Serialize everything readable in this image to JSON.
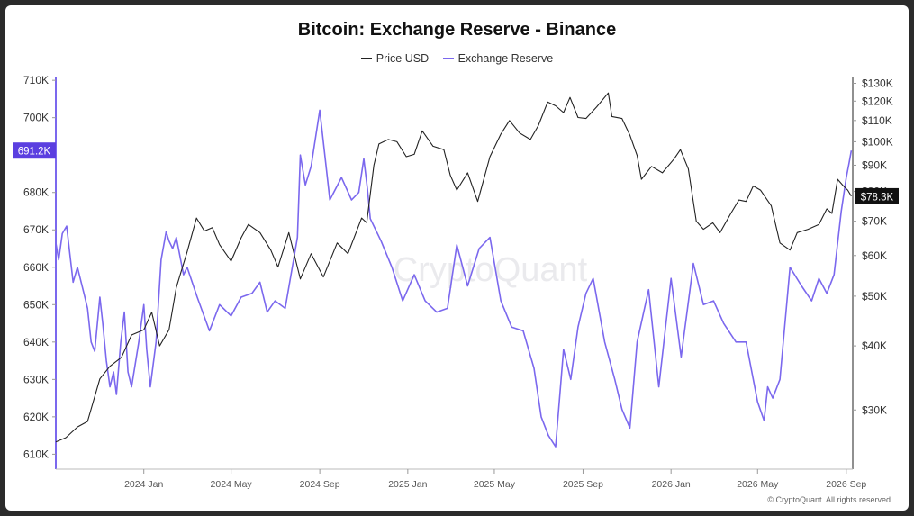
{
  "chart_data": {
    "type": "line",
    "title": "Bitcoin: Exchange Reserve - Binance",
    "watermark": "CryptoQuant",
    "credit": "© CryptoQuant. All rights reserved",
    "x_axis": {
      "type": "date",
      "range": [
        "2023-09-01",
        "2026-09-10"
      ],
      "tick_labels": [
        "2024 Jan",
        "2024 May",
        "2024 Sep",
        "2025 Jan",
        "2025 May",
        "2025 Sep",
        "2026 Jan",
        "2026 May",
        "2026 Sep"
      ],
      "tick_dates": [
        "2024-01-01",
        "2024-05-01",
        "2024-09-01",
        "2025-01-01",
        "2025-05-01",
        "2025-09-01",
        "2026-01-01",
        "2026-05-01",
        "2026-09-01"
      ]
    },
    "y_left": {
      "scale": "linear",
      "range": [
        606000,
        711000
      ],
      "ticks": [
        610000,
        620000,
        630000,
        640000,
        650000,
        660000,
        670000,
        680000,
        690000,
        700000,
        710000
      ],
      "tick_labels": [
        "610K",
        "620K",
        "630K",
        "640K",
        "650K",
        "660K",
        "670K",
        "680K",
        "690K",
        "700K",
        "710K"
      ],
      "current_value_label": "691.2K",
      "current_value": 691200
    },
    "y_right": {
      "scale": "log",
      "range": [
        23000,
        134000
      ],
      "ticks": [
        30000,
        40000,
        50000,
        60000,
        70000,
        80000,
        90000,
        100000,
        110000,
        120000,
        130000
      ],
      "tick_labels": [
        "$30K",
        "$40K",
        "$50K",
        "$60K",
        "$70K",
        "$80K",
        "$90K",
        "$100K",
        "$110K",
        "$120K",
        "$130K"
      ],
      "current_value_label": "$78.3K",
      "current_value": 78300
    },
    "grid": false,
    "legend_position": "top-center",
    "series": [
      {
        "name": "Price USD",
        "axis": "right",
        "color": "#222222",
        "x": [
          "2023-09-01",
          "2023-09-15",
          "2023-10-01",
          "2023-10-15",
          "2023-11-01",
          "2023-11-15",
          "2023-12-01",
          "2023-12-15",
          "2024-01-01",
          "2024-01-12",
          "2024-01-23",
          "2024-02-05",
          "2024-02-15",
          "2024-03-01",
          "2024-03-14",
          "2024-03-25",
          "2024-04-05",
          "2024-04-15",
          "2024-05-01",
          "2024-05-15",
          "2024-05-25",
          "2024-06-10",
          "2024-06-25",
          "2024-07-05",
          "2024-07-20",
          "2024-08-05",
          "2024-08-20",
          "2024-09-06",
          "2024-09-25",
          "2024-10-10",
          "2024-10-29",
          "2024-11-05",
          "2024-11-15",
          "2024-11-22",
          "2024-12-05",
          "2024-12-17",
          "2024-12-30",
          "2025-01-10",
          "2025-01-21",
          "2025-02-05",
          "2025-02-20",
          "2025-03-01",
          "2025-03-10",
          "2025-03-25",
          "2025-04-08",
          "2025-04-25",
          "2025-05-10",
          "2025-05-22",
          "2025-06-05",
          "2025-06-20",
          "2025-07-01",
          "2025-07-14",
          "2025-07-25",
          "2025-08-05",
          "2025-08-14",
          "2025-08-25",
          "2025-09-05",
          "2025-09-20",
          "2025-10-06",
          "2025-10-11",
          "2025-10-25",
          "2025-11-05",
          "2025-11-15",
          "2025-11-21",
          "2025-12-05",
          "2025-12-20",
          "2026-01-05",
          "2026-01-14",
          "2026-01-25",
          "2026-02-05",
          "2026-02-15",
          "2026-02-28",
          "2026-03-10",
          "2026-03-25",
          "2026-04-05",
          "2026-04-15",
          "2026-04-25",
          "2026-05-05",
          "2026-05-20",
          "2026-06-01",
          "2026-06-15",
          "2026-06-25",
          "2026-07-10",
          "2026-07-25",
          "2026-08-05",
          "2026-08-12",
          "2026-08-20",
          "2026-08-28",
          "2026-09-03",
          "2026-09-08"
        ],
        "y": [
          26000,
          26500,
          27800,
          28500,
          34500,
          36500,
          38000,
          42000,
          43000,
          46500,
          40000,
          43000,
          52000,
          61000,
          71000,
          67000,
          68000,
          63000,
          58500,
          65000,
          69000,
          66500,
          61500,
          57000,
          66500,
          54000,
          60500,
          54500,
          63500,
          60500,
          71000,
          69500,
          90000,
          99000,
          101000,
          100000,
          93500,
          94500,
          105000,
          98000,
          96500,
          86000,
          80500,
          87000,
          76500,
          93500,
          103500,
          110000,
          104000,
          101000,
          107500,
          119500,
          117500,
          114000,
          122000,
          111500,
          111000,
          117000,
          124500,
          112000,
          111000,
          103000,
          94000,
          84500,
          89500,
          87000,
          92500,
          96500,
          88500,
          70000,
          67500,
          69500,
          66500,
          72500,
          77000,
          76500,
          82000,
          80500,
          75000,
          63500,
          61500,
          66500,
          67500,
          69000,
          74000,
          72500,
          84500,
          82000,
          80500,
          78300
        ]
      },
      {
        "name": "Exchange Reserve",
        "axis": "left",
        "color": "#7b68ee",
        "x": [
          "2023-09-01",
          "2023-09-05",
          "2023-09-10",
          "2023-09-16",
          "2023-09-25",
          "2023-10-01",
          "2023-10-10",
          "2023-10-15",
          "2023-10-20",
          "2023-10-25",
          "2023-11-01",
          "2023-11-05",
          "2023-11-10",
          "2023-11-15",
          "2023-11-20",
          "2023-11-24",
          "2023-11-30",
          "2023-12-05",
          "2023-12-10",
          "2023-12-15",
          "2023-12-25",
          "2024-01-01",
          "2024-01-05",
          "2024-01-10",
          "2024-01-18",
          "2024-01-25",
          "2024-02-01",
          "2024-02-05",
          "2024-02-10",
          "2024-02-15",
          "2024-02-25",
          "2024-03-01",
          "2024-03-15",
          "2024-04-01",
          "2024-04-15",
          "2024-05-01",
          "2024-05-15",
          "2024-05-30",
          "2024-06-10",
          "2024-06-20",
          "2024-07-01",
          "2024-07-15",
          "2024-08-01",
          "2024-08-05",
          "2024-08-12",
          "2024-08-20",
          "2024-09-01",
          "2024-09-15",
          "2024-10-01",
          "2024-10-15",
          "2024-10-25",
          "2024-11-01",
          "2024-11-06",
          "2024-11-10",
          "2024-11-25",
          "2024-12-10",
          "2024-12-25",
          "2025-01-10",
          "2025-01-25",
          "2025-02-10",
          "2025-02-25",
          "2025-03-10",
          "2025-03-25",
          "2025-04-10",
          "2025-04-25",
          "2025-05-10",
          "2025-05-25",
          "2025-06-10",
          "2025-06-25",
          "2025-07-05",
          "2025-07-15",
          "2025-07-25",
          "2025-08-05",
          "2025-08-15",
          "2025-08-25",
          "2025-09-05",
          "2025-09-15",
          "2025-10-01",
          "2025-10-15",
          "2025-10-25",
          "2025-11-05",
          "2025-11-15",
          "2025-12-01",
          "2025-12-15",
          "2026-01-01",
          "2026-01-15",
          "2026-02-01",
          "2026-02-15",
          "2026-03-01",
          "2026-03-15",
          "2026-04-01",
          "2026-04-15",
          "2026-05-01",
          "2026-05-10",
          "2026-05-15",
          "2026-05-22",
          "2026-06-01",
          "2026-06-15",
          "2026-07-01",
          "2026-07-15",
          "2026-07-25",
          "2026-08-05",
          "2026-08-15",
          "2026-08-25",
          "2026-09-01",
          "2026-09-05",
          "2026-09-08"
        ],
        "y": [
          666500,
          662000,
          669000,
          671000,
          656000,
          660000,
          653000,
          649000,
          640000,
          637500,
          652000,
          645000,
          635000,
          628000,
          632000,
          626000,
          640000,
          648000,
          632000,
          628000,
          640000,
          650000,
          638000,
          628000,
          640000,
          662000,
          669500,
          667000,
          665000,
          668000,
          658000,
          660000,
          652000,
          643000,
          650000,
          647000,
          652000,
          653000,
          656000,
          648000,
          651000,
          649000,
          668000,
          690000,
          682000,
          687000,
          702000,
          678000,
          684000,
          678000,
          680000,
          689000,
          681000,
          673000,
          667000,
          660000,
          651000,
          658000,
          651000,
          648000,
          649000,
          666000,
          655000,
          665000,
          668000,
          651000,
          644000,
          643000,
          633000,
          620000,
          615000,
          612000,
          638000,
          630000,
          644000,
          653000,
          657000,
          640000,
          630000,
          622000,
          617000,
          640000,
          654000,
          628000,
          657000,
          636000,
          661000,
          650000,
          651000,
          645000,
          640000,
          640000,
          624000,
          619000,
          628000,
          625000,
          630000,
          660000,
          655000,
          651000,
          657000,
          653000,
          658000,
          675000,
          684000,
          688000,
          691200
        ]
      }
    ]
  }
}
